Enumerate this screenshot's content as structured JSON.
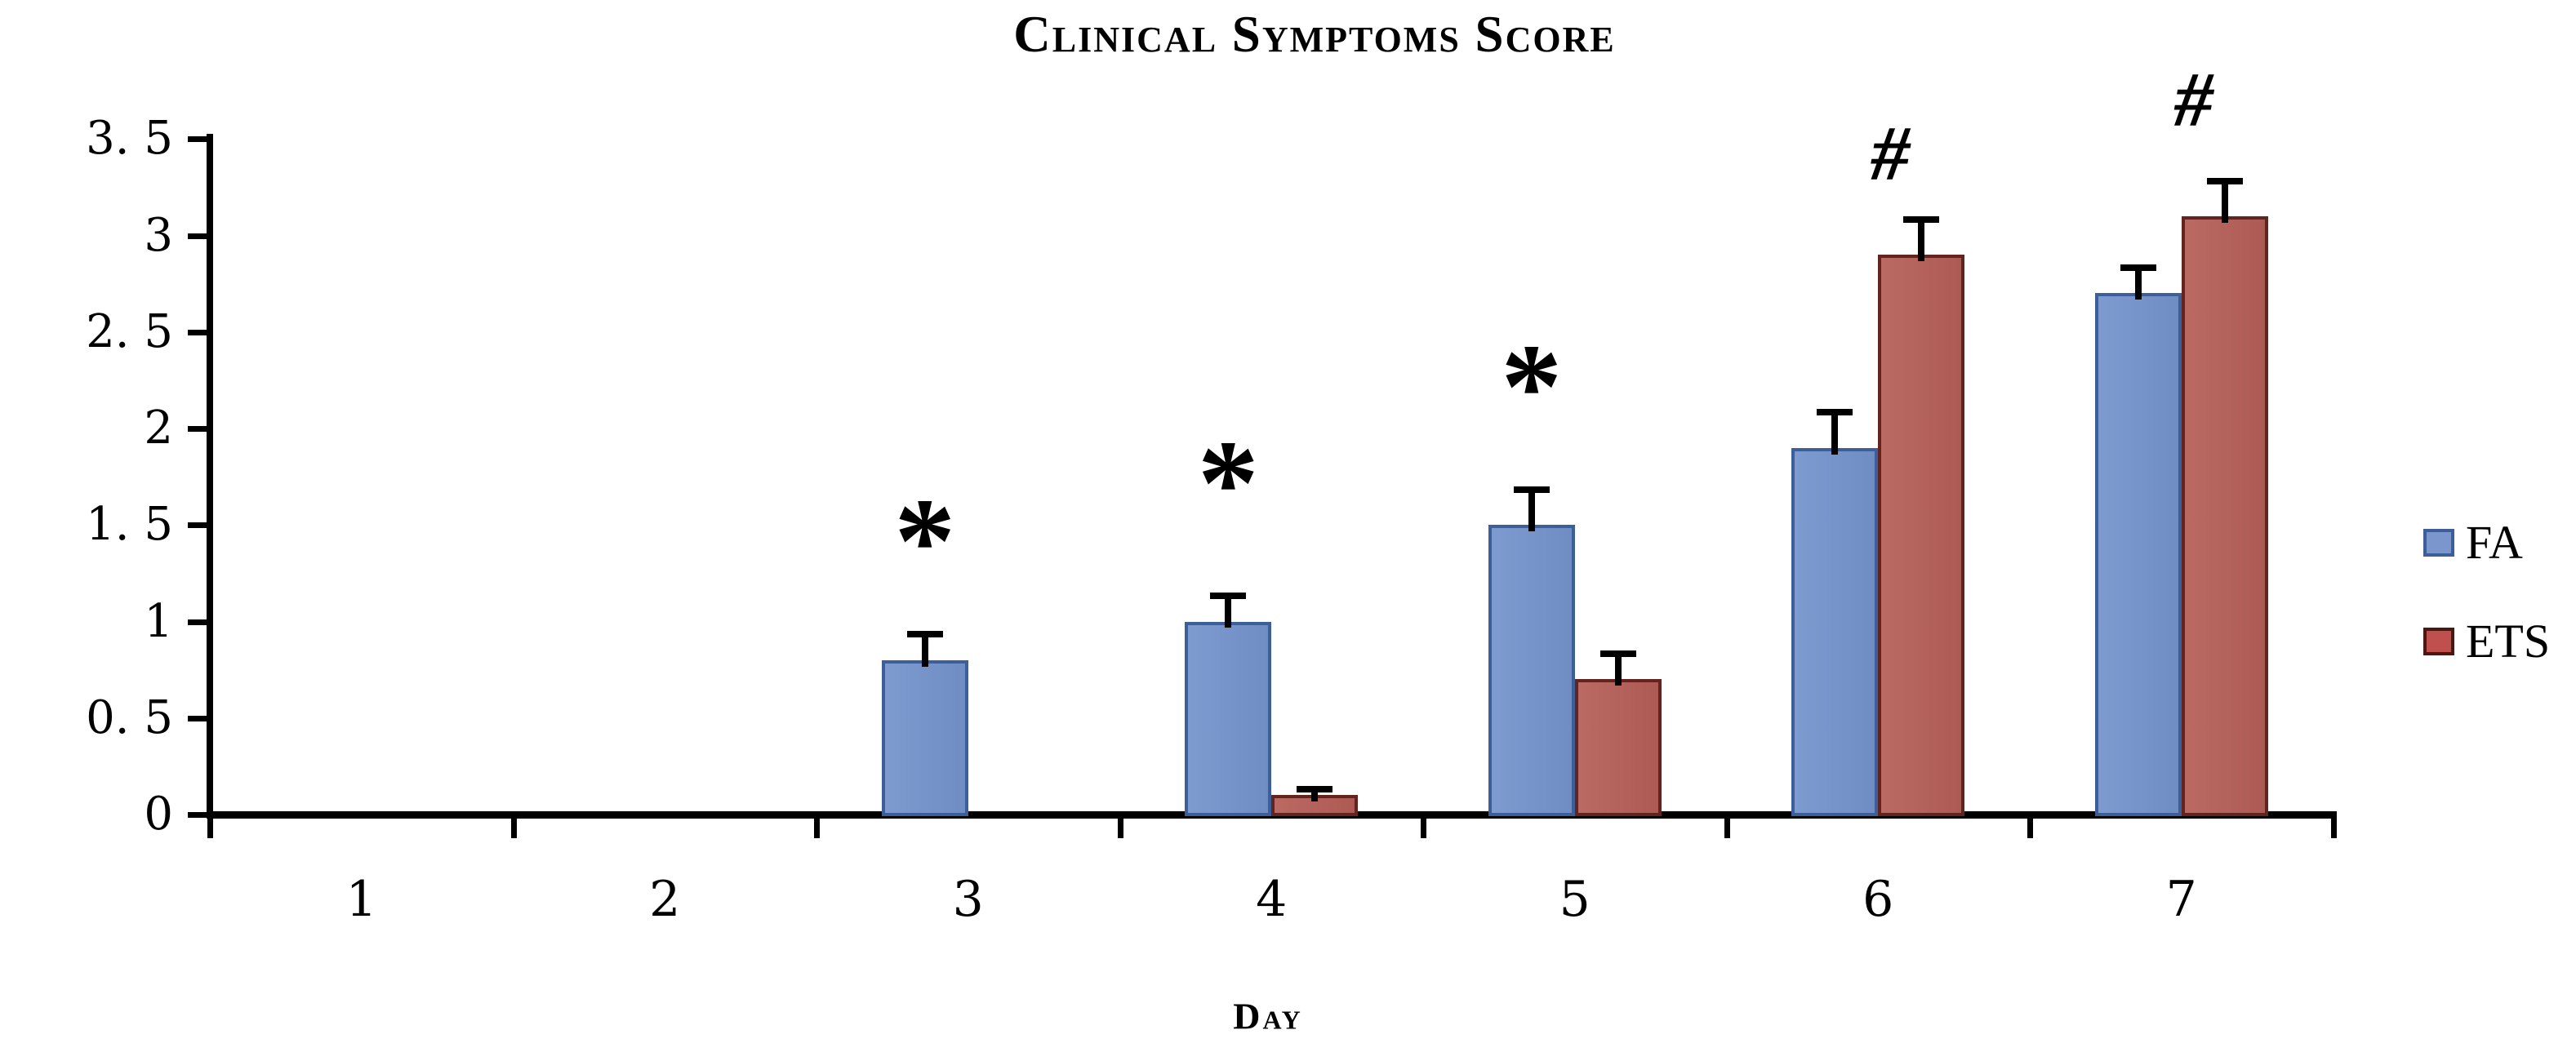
{
  "chart_data": {
    "type": "bar",
    "title": "Clinical Symptoms Score",
    "xlabel": "Day",
    "ylabel": "",
    "categories": [
      "1",
      "2",
      "3",
      "4",
      "5",
      "6",
      "7"
    ],
    "series": [
      {
        "name": "FA",
        "fill_color": "#7391c7",
        "border_color": "#3c5e99",
        "values": [
          0,
          0,
          0.8,
          1.0,
          1.5,
          1.9,
          2.7
        ],
        "errors_plus": [
          0,
          0,
          0.15,
          0.15,
          0.2,
          0.2,
          0.15
        ]
      },
      {
        "name": "ETS",
        "fill_color": "#b5625c",
        "border_color": "#63241f",
        "values": [
          0,
          0,
          0,
          0.1,
          0.7,
          2.9,
          3.1
        ],
        "errors_plus": [
          0,
          0,
          0,
          0.05,
          0.15,
          0.2,
          0.2
        ]
      }
    ],
    "y_ticks": [
      {
        "v": 0,
        "label": "0"
      },
      {
        "v": 0.5,
        "label": "0. 5"
      },
      {
        "v": 1,
        "label": "1"
      },
      {
        "v": 1.5,
        "label": "1. 5"
      },
      {
        "v": 2,
        "label": "2"
      },
      {
        "v": 2.5,
        "label": "2. 5"
      },
      {
        "v": 3,
        "label": "3"
      },
      {
        "v": 3.5,
        "label": "3. 5"
      }
    ],
    "ylim": [
      0,
      3.5
    ],
    "grid": false,
    "legend_position": "right",
    "annotations": [
      {
        "symbol": "*",
        "day": 3,
        "series": "FA",
        "y": 1.55
      },
      {
        "symbol": "*",
        "day": 4,
        "series": "FA",
        "y": 1.85
      },
      {
        "symbol": "*",
        "day": 5,
        "series": "FA",
        "y": 2.35
      },
      {
        "symbol": "#",
        "day": 6,
        "series": "ETS",
        "y": 3.45
      },
      {
        "symbol": "#",
        "day": 7,
        "series": "ETS",
        "y": 3.73
      }
    ]
  },
  "legend": {
    "items": [
      {
        "name": "FA",
        "swatch_color": "#7b96cc",
        "swatch_border": "#3c5e99"
      },
      {
        "name": "ETS",
        "swatch_color": "#c0504d",
        "swatch_border": "#4a1713"
      }
    ]
  }
}
